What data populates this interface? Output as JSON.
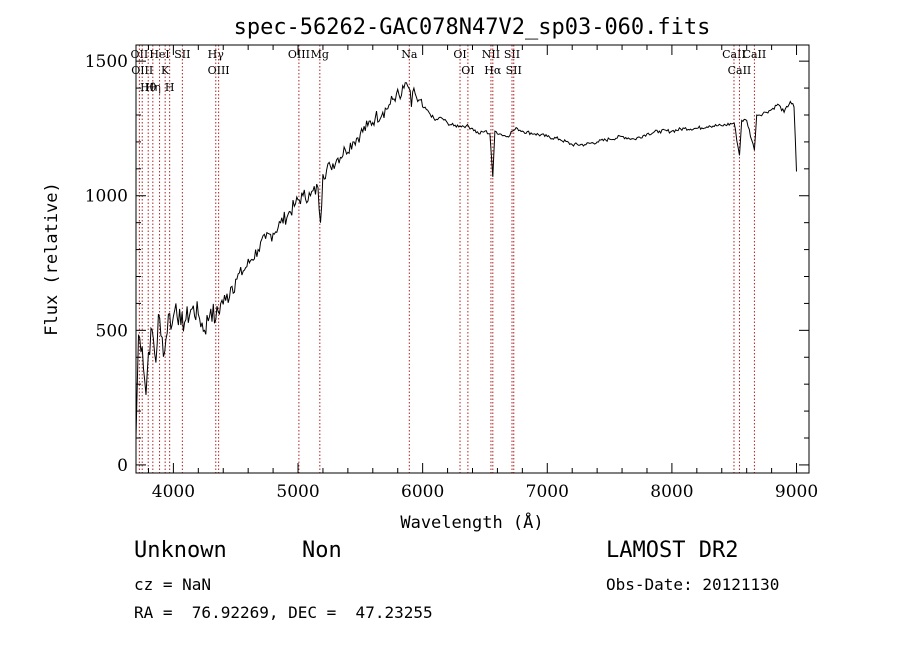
{
  "chart_data": {
    "type": "line",
    "title": "spec-56262-GAC078N47V2_sp03-060.fits",
    "xlabel": "Wavelength (Å)",
    "ylabel": "Flux (relative)",
    "xlim": [
      3700,
      9100
    ],
    "ylim": [
      -30,
      1560
    ],
    "x_ticks": [
      4000,
      5000,
      6000,
      7000,
      8000,
      9000
    ],
    "y_ticks": [
      0,
      500,
      1000,
      1500
    ],
    "grid": false,
    "series": [
      {
        "x": [
          3700,
          3720,
          3750,
          3780,
          3800,
          3830,
          3860,
          3880,
          3900,
          3930,
          3960,
          3990,
          4020,
          4060,
          4100,
          4150,
          4200,
          4250,
          4300,
          4340,
          4380,
          4420,
          4460,
          4500,
          4560,
          4620,
          4680,
          4740,
          4800,
          4860,
          4920,
          4980,
          5040,
          5100,
          5160,
          5180,
          5200,
          5260,
          5320,
          5380,
          5440,
          5500,
          5560,
          5620,
          5680,
          5740,
          5790,
          5820,
          5850,
          5870,
          5890,
          5910,
          5930,
          5960,
          6000,
          6050,
          6100,
          6150,
          6200,
          6250,
          6300,
          6350,
          6400,
          6450,
          6500,
          6540,
          6563,
          6580,
          6620,
          6680,
          6720,
          6760,
          6800,
          6900,
          7000,
          7100,
          7200,
          7300,
          7400,
          7500,
          7600,
          7700,
          7800,
          7900,
          8000,
          8100,
          8200,
          8300,
          8400,
          8500,
          8542,
          8560,
          8600,
          8662,
          8680,
          8700,
          8750,
          8800,
          8850,
          8900,
          8950,
          8980,
          9000
        ],
        "y": [
          100,
          480,
          440,
          260,
          420,
          500,
          380,
          560,
          480,
          420,
          560,
          520,
          600,
          520,
          540,
          580,
          560,
          500,
          580,
          540,
          600,
          610,
          660,
          690,
          720,
          760,
          800,
          840,
          860,
          900,
          930,
          970,
          1000,
          1000,
          1030,
          900,
          1080,
          1110,
          1140,
          1170,
          1200,
          1230,
          1260,
          1290,
          1310,
          1340,
          1380,
          1360,
          1400,
          1420,
          1400,
          1330,
          1400,
          1350,
          1330,
          1310,
          1280,
          1290,
          1270,
          1260,
          1260,
          1260,
          1250,
          1230,
          1240,
          1230,
          1070,
          1240,
          1230,
          1220,
          1240,
          1250,
          1240,
          1230,
          1220,
          1210,
          1190,
          1190,
          1200,
          1210,
          1220,
          1210,
          1230,
          1240,
          1240,
          1250,
          1250,
          1260,
          1260,
          1270,
          1150,
          1280,
          1280,
          1170,
          1300,
          1300,
          1310,
          1320,
          1340,
          1310,
          1350,
          1330,
          1090
        ]
      }
    ],
    "line_markers": [
      {
        "x": 3727,
        "label": "OII"
      },
      {
        "x": 3750,
        "label": "OIII"
      },
      {
        "x": 3798,
        "label": "Hθ"
      },
      {
        "x": 3835,
        "label": "Hη"
      },
      {
        "x": 3889,
        "label": "HeI"
      },
      {
        "x": 3934,
        "label": "K"
      },
      {
        "x": 3970,
        "label": "H"
      },
      {
        "x": 4072,
        "label": "SII"
      },
      {
        "x": 4340,
        "label": "Hγ"
      },
      {
        "x": 4363,
        "label": "OIII"
      },
      {
        "x": 5007,
        "label": "OIII"
      },
      {
        "x": 5175,
        "label": "Mg"
      },
      {
        "x": 5893,
        "label": "Na"
      },
      {
        "x": 6300,
        "label": "OI"
      },
      {
        "x": 6363,
        "label": "OI"
      },
      {
        "x": 6548,
        "label": "NII"
      },
      {
        "x": 6563,
        "label": "Hα"
      },
      {
        "x": 6717,
        "label": "SII"
      },
      {
        "x": 6731,
        "label": "SII"
      },
      {
        "x": 8498,
        "label": "CaII"
      },
      {
        "x": 8542,
        "label": "CaII"
      },
      {
        "x": 8662,
        "label": "CaII"
      }
    ],
    "colors": {
      "spectrum": "#000000",
      "markers": "#b22222"
    }
  },
  "info": {
    "class": "Unknown",
    "subclass": "Non",
    "cz": "cz = NaN",
    "coords": "RA =  76.92269, DEC =  47.23255",
    "survey": "LAMOST DR2",
    "obs_date": "Obs-Date: 20121130"
  }
}
